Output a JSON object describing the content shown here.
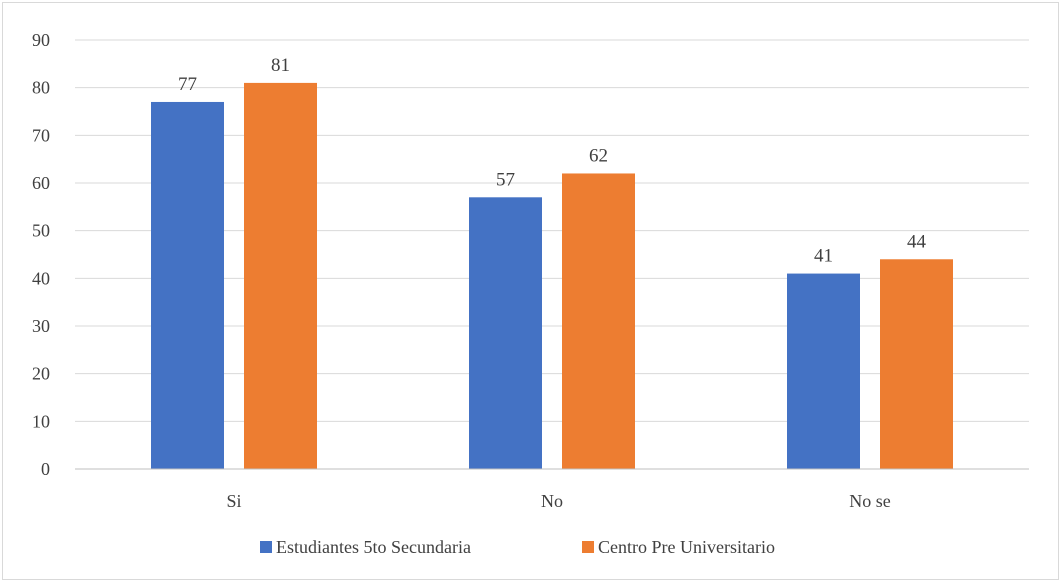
{
  "chart_data": {
    "type": "bar",
    "categories": [
      "Si",
      "No",
      "No se"
    ],
    "series": [
      {
        "name": "Estudiantes 5to Secundaria",
        "values": [
          77,
          57,
          41
        ],
        "color": "#4472c4"
      },
      {
        "name": "Centro Pre Universitario",
        "values": [
          81,
          62,
          44
        ],
        "color": "#ed7d31"
      }
    ],
    "yticks": [
      "0",
      "10",
      "20",
      "30",
      "40",
      "50",
      "60",
      "70",
      "80",
      "90"
    ],
    "ylim": [
      0,
      90
    ],
    "grid": true,
    "legend_position": "bottom",
    "gridline_color": "#d9d9d9",
    "axis_color": "#bfbfbf"
  }
}
